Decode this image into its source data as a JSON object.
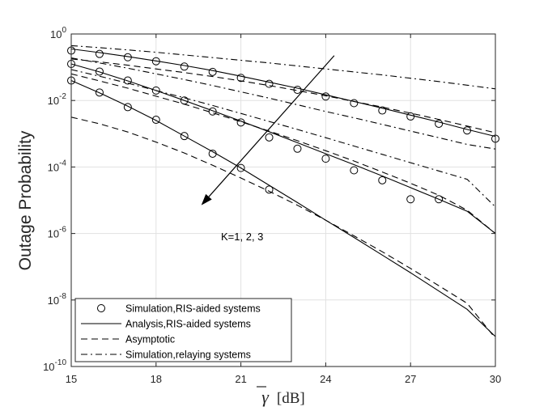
{
  "chart_data": {
    "type": "line",
    "xlabel_symbol": "γ",
    "xlabel_unit": "[dB]",
    "ylabel": "Outage Probability",
    "xlim": [
      15,
      30
    ],
    "ylim_log10": [
      -10,
      0
    ],
    "y_scale": "log",
    "grid": true,
    "legend_position": "bottom-left",
    "x_ticks": [
      15,
      18,
      21,
      24,
      27,
      30
    ],
    "y_ticks": [
      {
        "base": "10",
        "exp": "0",
        "log10": 0
      },
      {
        "base": "10",
        "exp": "-2",
        "log10": -2
      },
      {
        "base": "10",
        "exp": "-4",
        "log10": -4
      },
      {
        "base": "10",
        "exp": "-6",
        "log10": -6
      },
      {
        "base": "10",
        "exp": "-8",
        "log10": -8
      },
      {
        "base": "10",
        "exp": "-10",
        "log10": -10
      }
    ],
    "legend": [
      {
        "label": "Simulation,RIS-aided systems",
        "style": "marker-circle"
      },
      {
        "label": "Analysis,RIS-aided systems",
        "style": "solid"
      },
      {
        "label": "Asymptotic",
        "style": "dashed"
      },
      {
        "label": "Simulation,relaying systems",
        "style": "dashdot"
      }
    ],
    "annotation": {
      "text": "K=1, 2, 3",
      "arrow_from": [
        24.3,
        -0.65
      ],
      "arrow_to": [
        19.6,
        -5.15
      ]
    },
    "series": [
      {
        "style": "marker-circle",
        "x": [
          15,
          16,
          17,
          18,
          19,
          20,
          21,
          22,
          23,
          24,
          25,
          26,
          27,
          28,
          29,
          30
        ],
        "y_log10": [
          -0.5,
          -0.6,
          -0.7,
          -0.82,
          -0.98,
          -1.14,
          -1.32,
          -1.5,
          -1.68,
          -1.88,
          -2.08,
          -2.3,
          -2.48,
          -2.7,
          -2.9,
          -3.15
        ]
      },
      {
        "style": "solid",
        "x": [
          15,
          16,
          17,
          18,
          19,
          20,
          21,
          22,
          23,
          24,
          25,
          26,
          27,
          28,
          29,
          30
        ],
        "y_log10": [
          -0.45,
          -0.56,
          -0.68,
          -0.81,
          -0.95,
          -1.1,
          -1.27,
          -1.45,
          -1.63,
          -1.83,
          -2.03,
          -2.23,
          -2.44,
          -2.65,
          -2.87,
          -3.08
        ]
      },
      {
        "style": "dashed",
        "x": [
          15,
          16,
          17,
          18,
          19,
          20,
          21,
          22,
          23,
          24,
          25,
          26,
          27,
          28,
          29,
          30
        ],
        "y_log10": [
          -0.75,
          -0.84,
          -0.94,
          -1.05,
          -1.16,
          -1.28,
          -1.41,
          -1.55,
          -1.7,
          -1.86,
          -2.03,
          -2.2,
          -2.38,
          -2.57,
          -2.77,
          -2.97
        ]
      },
      {
        "style": "dashdot",
        "x": [
          15,
          16,
          17,
          18,
          19,
          20,
          21,
          22,
          23,
          24,
          25,
          26,
          27,
          28,
          29,
          30
        ],
        "y_log10": [
          -0.35,
          -0.41,
          -0.48,
          -0.55,
          -0.63,
          -0.71,
          -0.79,
          -0.87,
          -0.96,
          -1.05,
          -1.14,
          -1.23,
          -1.33,
          -1.43,
          -1.54,
          -1.65
        ]
      },
      {
        "style": "dashdot",
        "x": [
          15,
          16,
          17,
          18,
          19,
          20,
          21,
          22,
          23,
          24,
          25,
          26,
          27,
          28,
          29,
          30
        ],
        "y_log10": [
          -0.72,
          -0.87,
          -1.03,
          -1.2,
          -1.37,
          -1.55,
          -1.74,
          -1.93,
          -2.13,
          -2.33,
          -2.52,
          -2.72,
          -2.92,
          -3.12,
          -3.32,
          -3.46
        ]
      },
      {
        "style": "marker-circle",
        "x": [
          15,
          16,
          17,
          18,
          19,
          20,
          21,
          22,
          23,
          24,
          25,
          26,
          27,
          28
        ],
        "y_log10": [
          -0.9,
          -1.13,
          -1.4,
          -1.7,
          -2.0,
          -2.33,
          -2.66,
          -3.11,
          -3.45,
          -3.75,
          -4.1,
          -4.4,
          -4.97,
          -4.97
        ]
      },
      {
        "style": "solid",
        "x": [
          15,
          16,
          17,
          18,
          19,
          20,
          21,
          22,
          23,
          24,
          25,
          26,
          27,
          28,
          29,
          30
        ],
        "y_log10": [
          -0.9,
          -1.14,
          -1.41,
          -1.7,
          -2.0,
          -2.31,
          -2.62,
          -2.94,
          -3.27,
          -3.6,
          -3.93,
          -4.27,
          -4.62,
          -4.97,
          -5.33,
          -6.0
        ]
      },
      {
        "style": "dashed",
        "x": [
          15,
          16,
          17,
          18,
          19,
          20,
          21,
          22,
          23,
          24,
          25,
          26,
          27,
          28,
          29,
          30
        ],
        "y_log10": [
          -1.2,
          -1.41,
          -1.63,
          -1.87,
          -2.11,
          -2.37,
          -2.64,
          -2.92,
          -3.21,
          -3.51,
          -3.82,
          -4.15,
          -4.49,
          -4.85,
          -5.3,
          -6.0
        ]
      },
      {
        "style": "dashdot",
        "x": [
          15,
          16,
          17,
          18,
          19,
          20,
          21,
          22,
          23,
          24,
          25,
          26,
          27,
          28,
          29,
          30
        ],
        "y_log10": [
          -1.07,
          -1.27,
          -1.48,
          -1.7,
          -1.92,
          -2.15,
          -2.39,
          -2.63,
          -2.87,
          -3.12,
          -3.37,
          -3.62,
          -3.87,
          -4.12,
          -4.37,
          -5.2
        ]
      },
      {
        "style": "marker-circle",
        "x": [
          15,
          16,
          17,
          18,
          19,
          20,
          21,
          22
        ],
        "y_log10": [
          -1.4,
          -1.76,
          -2.2,
          -2.58,
          -3.07,
          -3.6,
          -4.03,
          -4.68
        ]
      },
      {
        "style": "solid",
        "x": [
          15,
          16,
          17,
          18,
          19,
          20,
          21,
          22,
          23,
          24,
          25,
          26,
          27,
          28,
          29,
          30
        ],
        "y_log10": [
          -1.4,
          -1.77,
          -2.17,
          -2.6,
          -3.07,
          -3.54,
          -4.03,
          -4.55,
          -5.07,
          -5.6,
          -6.12,
          -6.65,
          -7.18,
          -7.73,
          -8.28,
          -9.1
        ]
      },
      {
        "style": "dashed",
        "x": [
          15,
          16,
          17,
          18,
          19,
          20,
          21,
          22,
          23,
          24,
          25,
          26,
          27,
          28,
          29,
          30
        ],
        "y_log10": [
          -2.5,
          -2.7,
          -2.95,
          -3.25,
          -3.58,
          -3.95,
          -4.33,
          -4.73,
          -5.15,
          -5.6,
          -6.07,
          -6.55,
          -7.05,
          -7.57,
          -8.1,
          -9.15
        ]
      }
    ]
  }
}
